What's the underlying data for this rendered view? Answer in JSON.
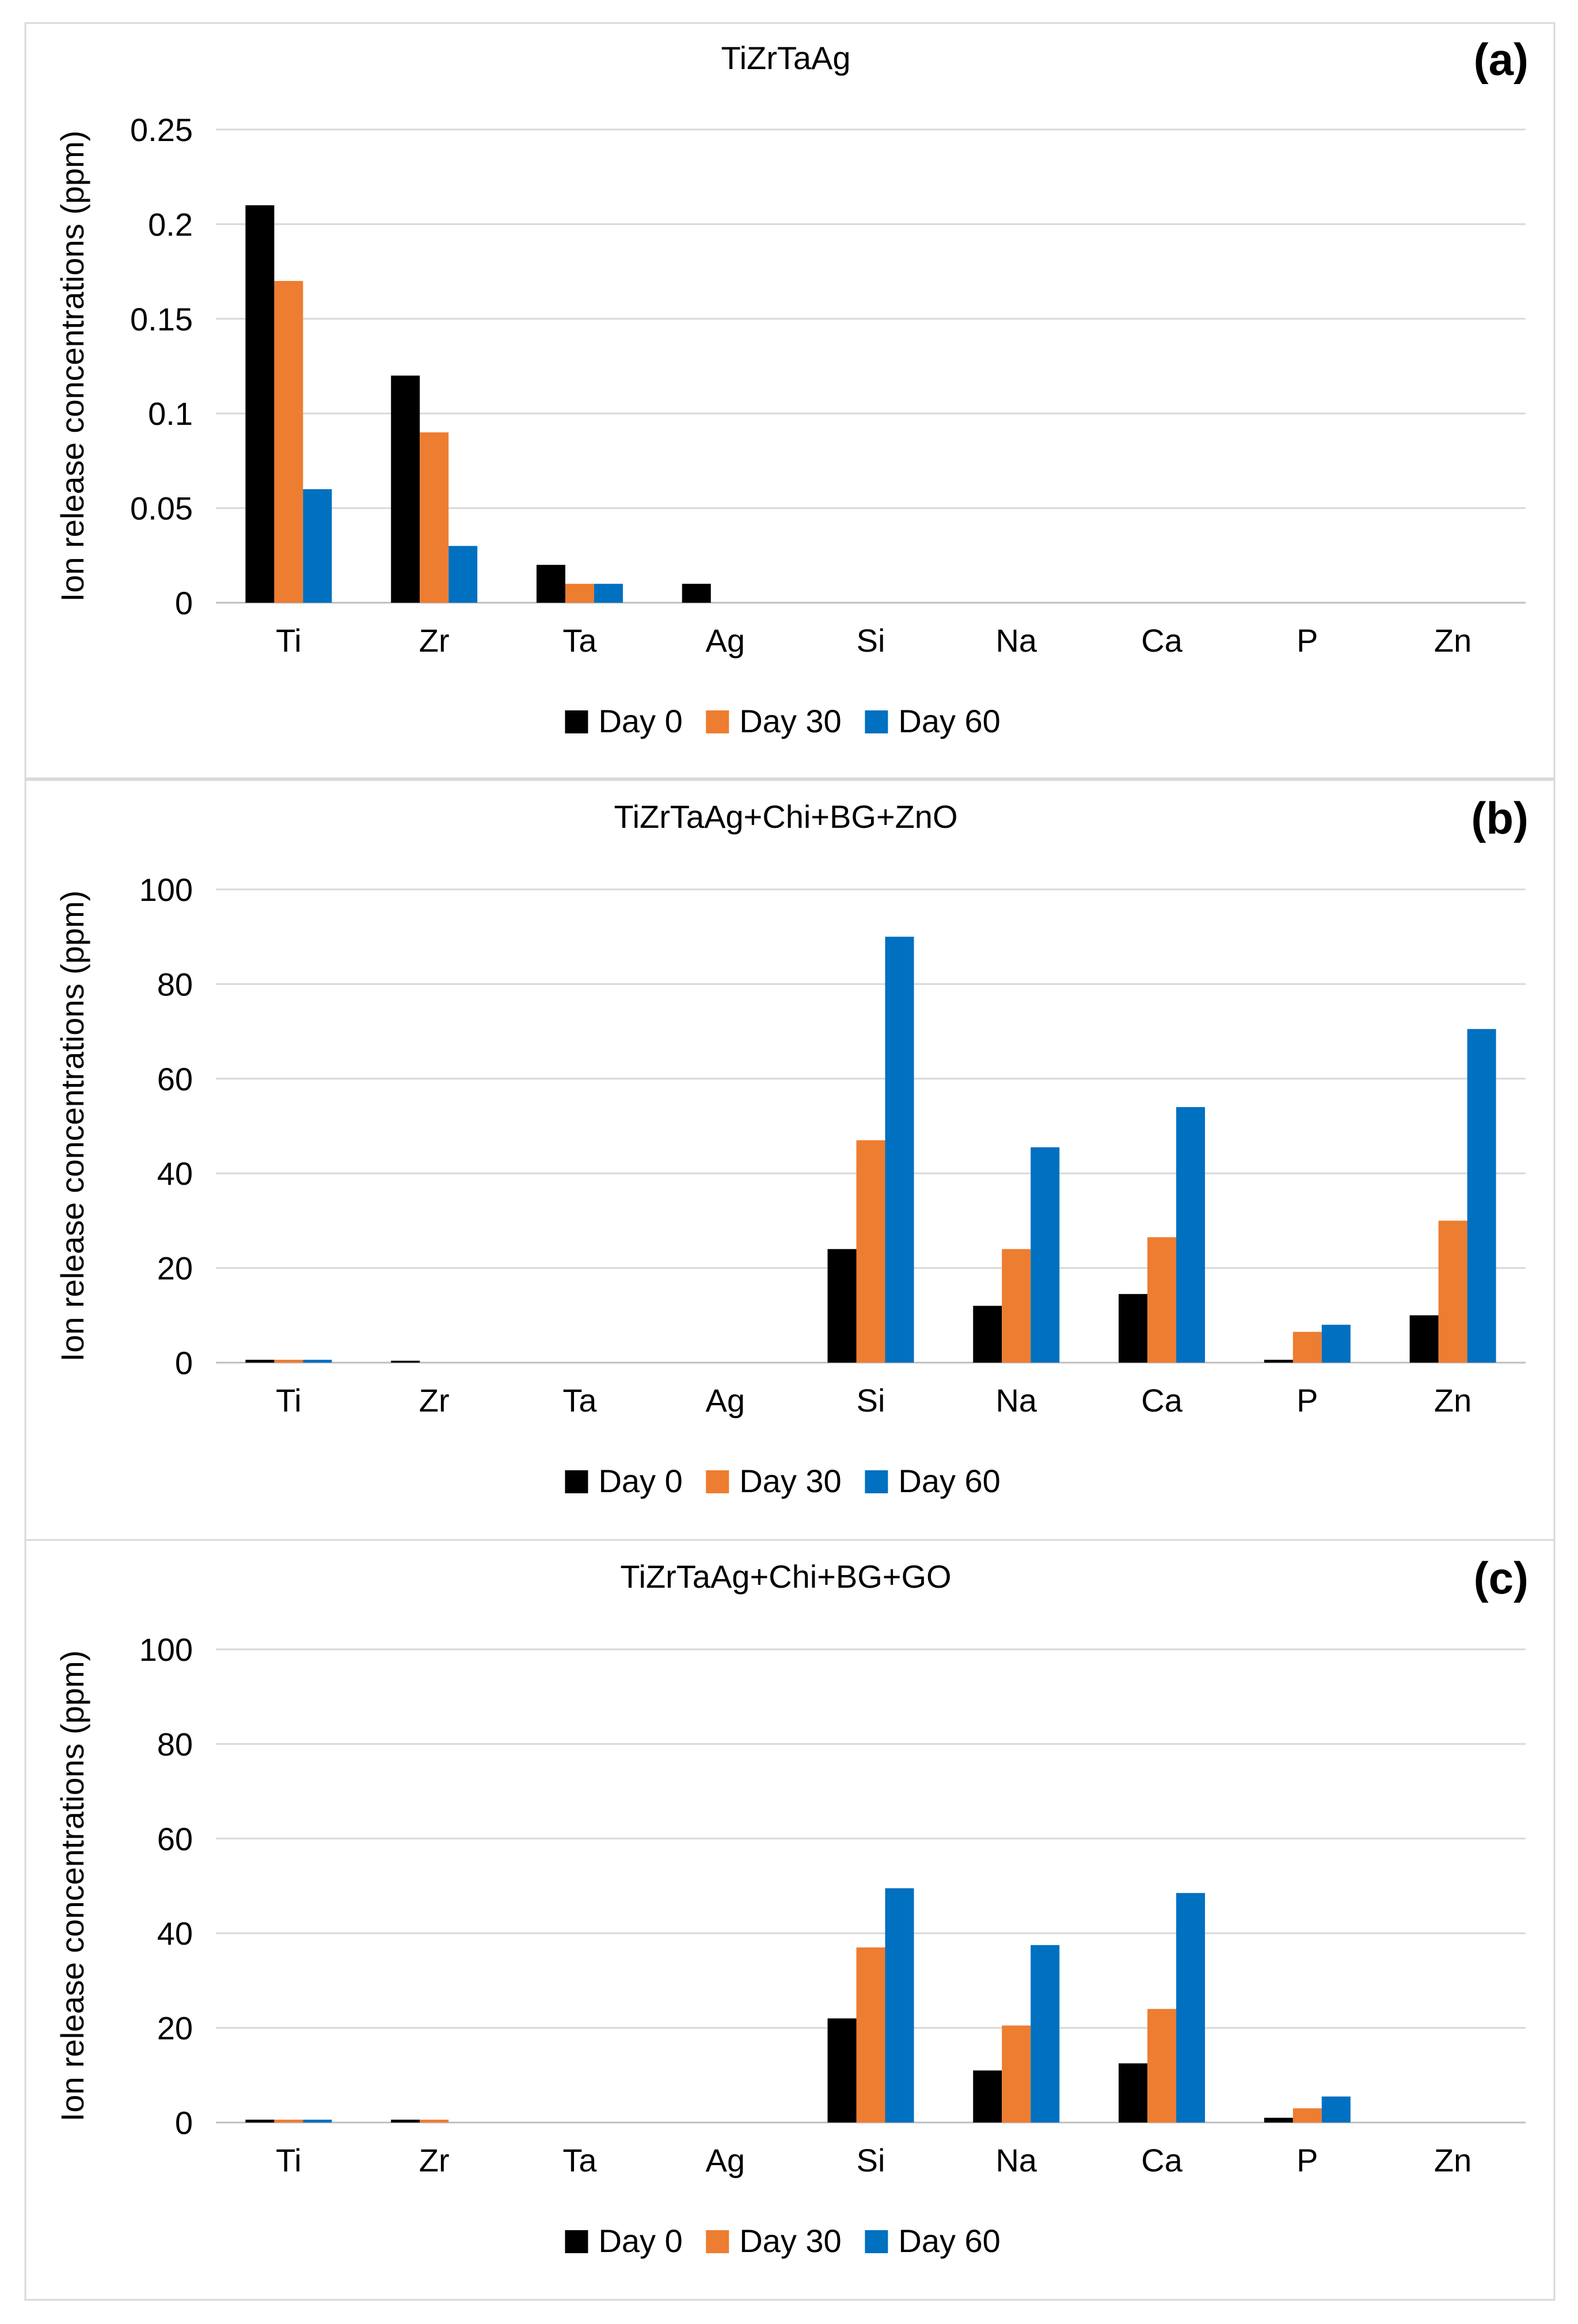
{
  "chart_data": [
    {
      "type": "bar",
      "panel_label": "(a)",
      "title": "TiZrTaAg",
      "xlabel": "",
      "ylabel": "Ion release concentrations (ppm)",
      "categories": [
        "Ti",
        "Zr",
        "Ta",
        "Ag",
        "Si",
        "Na",
        "Ca",
        "P",
        "Zn"
      ],
      "ylim": [
        0,
        0.25
      ],
      "yticks": [
        0,
        0.05,
        0.1,
        0.15,
        0.2,
        0.25
      ],
      "ytick_labels": [
        "0",
        "0.05",
        "0.1",
        "0.15",
        "0.2",
        "0.25"
      ],
      "grid": true,
      "legend_position": "bottom",
      "series": [
        {
          "name": "Day 0",
          "color": "#000000",
          "values": [
            0.21,
            0.12,
            0.02,
            0.01,
            0,
            0,
            0,
            0,
            0
          ]
        },
        {
          "name": "Day 30",
          "color": "#ED7D31",
          "values": [
            0.17,
            0.09,
            0.01,
            0,
            0,
            0,
            0,
            0,
            0
          ]
        },
        {
          "name": "Day 60",
          "color": "#0070C0",
          "values": [
            0.06,
            0.03,
            0.01,
            0,
            0,
            0,
            0,
            0,
            0
          ]
        }
      ]
    },
    {
      "type": "bar",
      "panel_label": "(b)",
      "title": "TiZrTaAg+Chi+BG+ZnO",
      "xlabel": "",
      "ylabel": "Ion release concentrations (ppm)",
      "categories": [
        "Ti",
        "Zr",
        "Ta",
        "Ag",
        "Si",
        "Na",
        "Ca",
        "P",
        "Zn"
      ],
      "ylim": [
        0,
        100
      ],
      "yticks": [
        0,
        20,
        40,
        60,
        80,
        100
      ],
      "ytick_labels": [
        "0",
        "20",
        "40",
        "60",
        "80",
        "100"
      ],
      "grid": true,
      "legend_position": "bottom",
      "series": [
        {
          "name": "Day 0",
          "color": "#000000",
          "values": [
            0.6,
            0.4,
            0,
            0,
            24,
            12,
            14.5,
            0.6,
            10
          ]
        },
        {
          "name": "Day 30",
          "color": "#ED7D31",
          "values": [
            0.6,
            0,
            0,
            0,
            47,
            24,
            26.5,
            6.5,
            30
          ]
        },
        {
          "name": "Day 60",
          "color": "#0070C0",
          "values": [
            0.6,
            0,
            0,
            0,
            90,
            45.5,
            54,
            8,
            70.5
          ]
        }
      ]
    },
    {
      "type": "bar",
      "panel_label": "(c)",
      "title": "TiZrTaAg+Chi+BG+GO",
      "xlabel": "",
      "ylabel": "Ion release concentrations (ppm)",
      "categories": [
        "Ti",
        "Zr",
        "Ta",
        "Ag",
        "Si",
        "Na",
        "Ca",
        "P",
        "Zn"
      ],
      "ylim": [
        0,
        100
      ],
      "yticks": [
        0,
        20,
        40,
        60,
        80,
        100
      ],
      "ytick_labels": [
        "0",
        "20",
        "40",
        "60",
        "80",
        "100"
      ],
      "grid": true,
      "legend_position": "bottom",
      "series": [
        {
          "name": "Day 0",
          "color": "#000000",
          "values": [
            0.6,
            0.6,
            0,
            0,
            22,
            11,
            12.5,
            1,
            0
          ]
        },
        {
          "name": "Day 30",
          "color": "#ED7D31",
          "values": [
            0.6,
            0.6,
            0,
            0,
            37,
            20.5,
            24,
            3,
            0
          ]
        },
        {
          "name": "Day 60",
          "color": "#0070C0",
          "values": [
            0.6,
            0,
            0,
            0,
            49.5,
            37.5,
            48.5,
            5.5,
            0
          ]
        }
      ]
    }
  ]
}
